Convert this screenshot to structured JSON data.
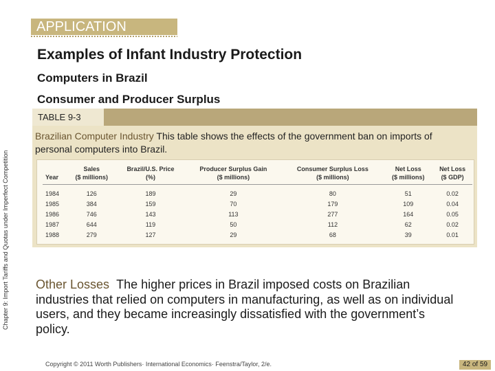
{
  "side_label": "Chapter 9: Import Tariffs and Quotas under Imperfect Competition",
  "section_tab": "APPLICATION",
  "title": "Examples of Infant Industry Protection",
  "subtitle": "Computers in Brazil",
  "subtitle2": "Consumer and Producer Surplus",
  "table": {
    "label": "TABLE 9-3",
    "caption_title": "Brazilian Computer Industry",
    "caption_text": "This table shows the effects of the government ban on imports of personal computers into Brazil.",
    "headers": [
      {
        "line1": "",
        "line2": "Year"
      },
      {
        "line1": "Sales",
        "line2": "($ millions)"
      },
      {
        "line1": "Brazil/U.S. Price",
        "line2": "(%)"
      },
      {
        "line1": "Producer Surplus Gain",
        "line2": "($ millions)"
      },
      {
        "line1": "Consumer Surplus Loss",
        "line2": "($ millions)"
      },
      {
        "line1": "Net Loss",
        "line2": "($ millions)"
      },
      {
        "line1": "Net Loss",
        "line2": "($ GDP)"
      }
    ],
    "rows": [
      [
        "1984",
        "126",
        "189",
        "29",
        "80",
        "51",
        "0.02"
      ],
      [
        "1985",
        "384",
        "159",
        "70",
        "179",
        "109",
        "0.04"
      ],
      [
        "1986",
        "746",
        "143",
        "113",
        "277",
        "164",
        "0.05"
      ],
      [
        "1987",
        "644",
        "119",
        "50",
        "112",
        "62",
        "0.02"
      ],
      [
        "1988",
        "279",
        "127",
        "29",
        "68",
        "39",
        "0.01"
      ]
    ]
  },
  "body": {
    "lead": "Other Losses",
    "text": "The higher prices in Brazil imposed costs on Brazilian industries that relied on computers in manufacturing, as well as on individual users, and they became increasingly dissatisfied with the government’s policy."
  },
  "footer": "Copyright © 2011 Worth Publishers· International Economics· Feenstra/Taylor, 2/e.",
  "page": {
    "current": "42",
    "sep": "of",
    "total": "59"
  }
}
